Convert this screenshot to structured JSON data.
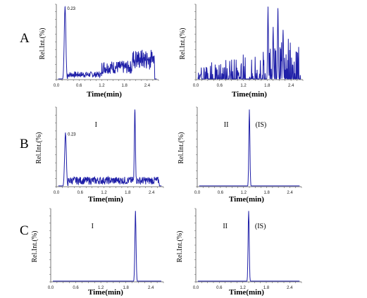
{
  "row_labels": [
    "A",
    "B",
    "C"
  ],
  "chart_data": [
    {
      "id": "A-left",
      "type": "line",
      "xlabel": "Time(min)",
      "ylabel": "Rel.Int.(%)",
      "xticks": [
        "0.0",
        "0.6",
        "1.2",
        "1.8",
        "2.4"
      ],
      "xlim": [
        0,
        2.7
      ],
      "ylim": [
        0,
        100
      ],
      "annotations": [
        {
          "text": "0.23",
          "x": 0.23
        }
      ],
      "peaks": [
        {
          "x": 0.23,
          "y": 100,
          "w": 0.03
        }
      ],
      "noise": [
        {
          "from": 0.3,
          "to": 1.2,
          "base": 3,
          "amp": 8
        },
        {
          "from": 1.2,
          "to": 2.6,
          "base": 8,
          "amp": 18
        },
        {
          "from": 2.0,
          "to": 2.6,
          "base": 14,
          "amp": 28
        }
      ],
      "labels": []
    },
    {
      "id": "A-right",
      "type": "line",
      "xlabel": "Time(min)",
      "ylabel": "Rel.Int.(%)",
      "xticks": [
        "0.0",
        "0.6",
        "1.2",
        "1.8",
        "2.4"
      ],
      "xlim": [
        0,
        2.7
      ],
      "ylim": [
        0,
        100
      ],
      "annotations": [],
      "peaks": [
        {
          "x": 1.82,
          "y": 100,
          "w": 0.015
        },
        {
          "x": 2.07,
          "y": 98,
          "w": 0.015
        },
        {
          "x": 1.95,
          "y": 72,
          "w": 0.015
        },
        {
          "x": 2.2,
          "y": 68,
          "w": 0.015
        }
      ],
      "noise": [
        {
          "from": 0.05,
          "to": 2.65,
          "base": 0,
          "amp": 45,
          "spiky": true
        }
      ],
      "labels": []
    },
    {
      "id": "B-left",
      "type": "line",
      "xlabel": "Time(min)",
      "ylabel": "Rel.Int.(%)",
      "xticks": [
        "0.0",
        "0.6",
        "1.2",
        "1.8",
        "2.4"
      ],
      "xlim": [
        0,
        2.7
      ],
      "ylim": [
        0,
        100
      ],
      "annotations": [
        {
          "text": "0.23",
          "x": 0.23
        }
      ],
      "peaks": [
        {
          "x": 0.23,
          "y": 70,
          "w": 0.03
        },
        {
          "x": 1.98,
          "y": 100,
          "w": 0.02
        }
      ],
      "noise": [
        {
          "from": 0.3,
          "to": 2.6,
          "base": 3,
          "amp": 10
        }
      ],
      "labels": [
        {
          "text": "I",
          "x": 1.0
        }
      ]
    },
    {
      "id": "B-right",
      "type": "line",
      "xlabel": "Time(min)",
      "ylabel": "Rel.Int.(%)",
      "xticks": [
        "0.0",
        "0.6",
        "1.2",
        "1.8",
        "2.4"
      ],
      "xlim": [
        0,
        2.7
      ],
      "ylim": [
        0,
        100
      ],
      "annotations": [],
      "peaks": [
        {
          "x": 1.35,
          "y": 100,
          "w": 0.02
        }
      ],
      "noise": [],
      "labels": [
        {
          "text": "II",
          "x": 0.75
        },
        {
          "text": "(IS)",
          "x": 1.65
        }
      ]
    },
    {
      "id": "C-left",
      "type": "line",
      "xlabel": "Time(min)",
      "ylabel": "Rel.Int.(%)",
      "xticks": [
        "0.0",
        "0.6",
        "1.2",
        "1.8",
        "2.4"
      ],
      "xlim": [
        0,
        2.7
      ],
      "ylim": [
        0,
        100
      ],
      "annotations": [],
      "peaks": [
        {
          "x": 2.03,
          "y": 100,
          "w": 0.02
        }
      ],
      "noise": [],
      "labels": [
        {
          "text": "I",
          "x": 1.0
        }
      ]
    },
    {
      "id": "C-right",
      "type": "line",
      "xlabel": "Time(min)",
      "ylabel": "Rel.Int.(%)",
      "xticks": [
        "0.0",
        "0.6",
        "1.2",
        "1.8",
        "2.4"
      ],
      "xlim": [
        0,
        2.7
      ],
      "ylim": [
        0,
        100
      ],
      "annotations": [],
      "peaks": [
        {
          "x": 1.35,
          "y": 100,
          "w": 0.02
        }
      ],
      "noise": [],
      "labels": [
        {
          "text": "II",
          "x": 0.75
        },
        {
          "text": "(IS)",
          "x": 1.65
        }
      ]
    }
  ],
  "colors": {
    "trace": "#1f1fa8",
    "axis": "#555555"
  }
}
